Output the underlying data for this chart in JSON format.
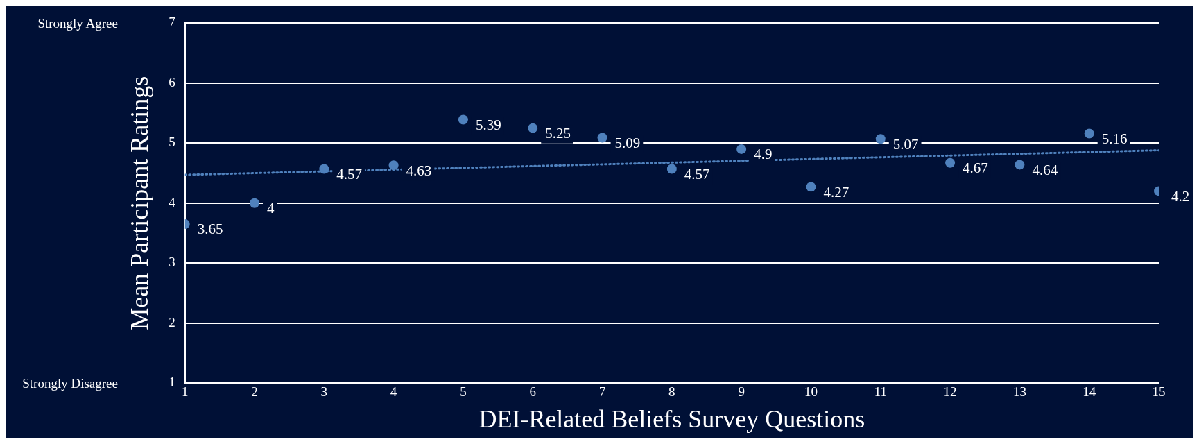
{
  "chart_data": {
    "type": "scatter",
    "xlabel": "DEI-Related Beliefs Survey Questions",
    "ylabel": "Mean Participant Ratings",
    "x": [
      1,
      2,
      3,
      4,
      5,
      6,
      7,
      8,
      9,
      10,
      11,
      12,
      13,
      14,
      15
    ],
    "xlim": [
      1,
      15
    ],
    "xticks": [
      1,
      2,
      3,
      4,
      5,
      6,
      7,
      8,
      9,
      10,
      11,
      12,
      13,
      14,
      15
    ],
    "ylim": [
      1,
      7
    ],
    "yticks": [
      1,
      2,
      3,
      4,
      5,
      6,
      7
    ],
    "grid": "y",
    "legend": false,
    "series": [
      {
        "color": "#4f81bd",
        "marker": "circle",
        "values": [
          3.65,
          4,
          4.57,
          4.63,
          5.39,
          5.25,
          5.09,
          4.57,
          4.9,
          4.27,
          5.07,
          4.67,
          4.64,
          5.16,
          4.2
        ],
        "value_labels": [
          "3.65",
          "4",
          "4.57",
          "4.63",
          "5.39",
          "5.25",
          "5.09",
          "4.57",
          "4.9",
          "4.27",
          "5.07",
          "4.67",
          "4.64",
          "5.16",
          "4.2"
        ]
      },
      {
        "type": "line",
        "color": "#4f81bd",
        "marker": "none",
        "line_style": "dotted",
        "x": [
          1,
          15
        ],
        "values": [
          4.47,
          4.88
        ]
      }
    ],
    "annotations": [
      "Strongly Agree",
      "Strongly Disagree"
    ]
  }
}
